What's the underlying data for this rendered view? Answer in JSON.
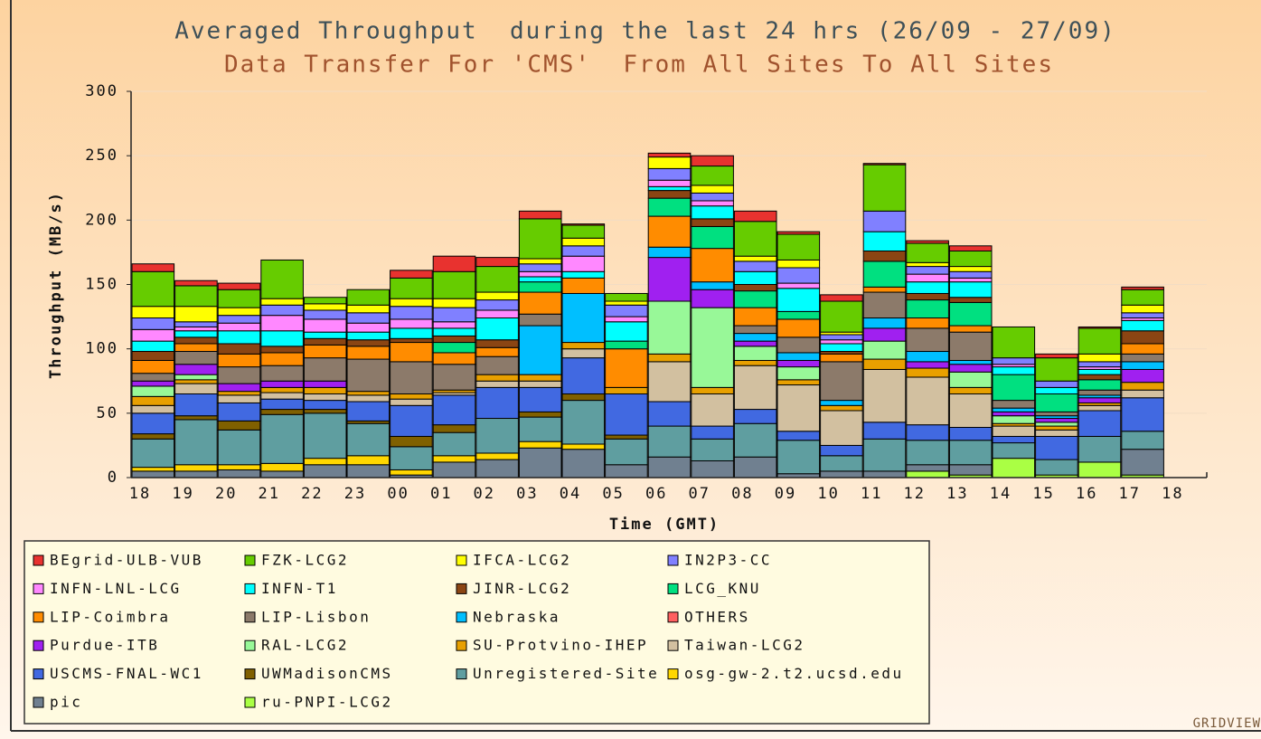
{
  "chart_data": {
    "type": "stacked_bar",
    "title": "Averaged Throughput  during the last 24 hrs (26/09 - 27/09)",
    "subtitle": "Data Transfer For 'CMS'  From All Sites To All Sites",
    "x_label": "Time (GMT)",
    "y_label": "Throughput (MB/s)",
    "categories": [
      "18",
      "19",
      "20",
      "21",
      "22",
      "23",
      "00",
      "01",
      "02",
      "03",
      "04",
      "05",
      "06",
      "07",
      "08",
      "09",
      "10",
      "11",
      "12",
      "13",
      "14",
      "15",
      "16",
      "17",
      "18"
    ],
    "ylim": [
      0,
      300
    ],
    "yticks": [
      0,
      50,
      100,
      150,
      200,
      250,
      300
    ],
    "grid": true,
    "series": [
      {
        "name": "BEgrid-ULB-VUB",
        "color": "#e8322f",
        "values": [
          6,
          4,
          5,
          0,
          0,
          0,
          6,
          12,
          7,
          6,
          1,
          0,
          3,
          8,
          8,
          2,
          5,
          1,
          2,
          4,
          0,
          3,
          1,
          2,
          null
        ]
      },
      {
        "name": "FZK-LCG2",
        "color": "#66cc00",
        "values": [
          27,
          16,
          14,
          30,
          5,
          12,
          16,
          21,
          20,
          31,
          10,
          6,
          0,
          15,
          27,
          20,
          24,
          36,
          15,
          12,
          24,
          18,
          20,
          12,
          null
        ]
      },
      {
        "name": "IFCA-LCG2",
        "color": "#ffff00",
        "values": [
          9,
          12,
          6,
          5,
          5,
          6,
          6,
          7,
          6,
          4,
          6,
          3,
          9,
          6,
          4,
          6,
          2,
          0,
          3,
          4,
          0,
          0,
          6,
          6,
          null
        ]
      },
      {
        "name": "IN2P3-CC",
        "color": "#8080ff",
        "values": [
          9,
          4,
          6,
          8,
          7,
          8,
          10,
          11,
          8,
          6,
          8,
          9,
          9,
          6,
          8,
          12,
          4,
          16,
          6,
          5,
          5,
          5,
          4,
          4,
          null
        ]
      },
      {
        "name": "INFN-LNL-LCG",
        "color": "#ff88ff",
        "values": [
          9,
          3,
          6,
          12,
          10,
          7,
          7,
          5,
          6,
          4,
          12,
          4,
          5,
          4,
          0,
          4,
          3,
          0,
          6,
          3,
          2,
          0,
          2,
          2,
          null
        ]
      },
      {
        "name": "INFN-T1",
        "color": "#00ffff",
        "values": [
          8,
          5,
          10,
          12,
          5,
          6,
          8,
          6,
          17,
          4,
          5,
          15,
          3,
          10,
          10,
          18,
          6,
          15,
          9,
          12,
          6,
          5,
          4,
          8,
          null
        ]
      },
      {
        "name": "JINR-LCG2",
        "color": "#8b4513",
        "values": [
          7,
          5,
          8,
          5,
          5,
          5,
          3,
          5,
          6,
          0,
          0,
          0,
          6,
          6,
          5,
          0,
          2,
          8,
          5,
          4,
          0,
          0,
          4,
          10,
          null
        ]
      },
      {
        "name": "LCG_KNU",
        "color": "#00e080",
        "values": [
          0,
          0,
          0,
          0,
          0,
          0,
          0,
          8,
          0,
          8,
          0,
          6,
          14,
          17,
          13,
          6,
          0,
          20,
          14,
          18,
          20,
          14,
          8,
          0,
          null
        ]
      },
      {
        "name": "LIP-Coimbra",
        "color": "#ff8c00",
        "values": [
          10,
          6,
          10,
          10,
          10,
          10,
          15,
          9,
          7,
          17,
          12,
          30,
          24,
          26,
          14,
          14,
          6,
          4,
          8,
          5,
          0,
          0,
          0,
          8,
          null
        ]
      },
      {
        "name": "LIP-Lisbon",
        "color": "#8c7a6a",
        "values": [
          6,
          10,
          13,
          12,
          18,
          25,
          25,
          20,
          14,
          9,
          0,
          0,
          0,
          0,
          6,
          12,
          30,
          20,
          18,
          22,
          6,
          3,
          4,
          6,
          null
        ]
      },
      {
        "name": "Nebraska",
        "color": "#00bfff",
        "values": [
          0,
          0,
          0,
          0,
          0,
          0,
          0,
          0,
          0,
          38,
          38,
          0,
          8,
          6,
          6,
          6,
          4,
          8,
          8,
          3,
          3,
          2,
          2,
          6,
          null
        ]
      },
      {
        "name": "OTHERS",
        "color": "#ff6060",
        "values": [
          0,
          0,
          0,
          0,
          0,
          0,
          0,
          0,
          0,
          0,
          0,
          0,
          0,
          0,
          0,
          0,
          0,
          0,
          0,
          0,
          0,
          0,
          0,
          0,
          null
        ]
      },
      {
        "name": "Purdue-ITB",
        "color": "#a020f0",
        "values": [
          4,
          8,
          6,
          5,
          5,
          0,
          0,
          0,
          0,
          0,
          0,
          0,
          34,
          14,
          4,
          5,
          0,
          10,
          5,
          6,
          3,
          3,
          4,
          10,
          null
        ]
      },
      {
        "name": "RAL-LCG2",
        "color": "#98f898",
        "values": [
          8,
          4,
          0,
          0,
          0,
          0,
          0,
          0,
          0,
          0,
          0,
          0,
          41,
          62,
          11,
          10,
          0,
          14,
          0,
          12,
          6,
          3,
          0,
          0,
          null
        ]
      },
      {
        "name": "SU-Protvino-IHEP",
        "color": "#e8a000",
        "values": [
          7,
          3,
          3,
          4,
          5,
          3,
          4,
          2,
          5,
          5,
          5,
          5,
          6,
          5,
          4,
          4,
          4,
          8,
          7,
          5,
          2,
          3,
          2,
          6,
          null
        ]
      },
      {
        "name": "Taiwan-LCG2",
        "color": "#d2c0a0",
        "values": [
          6,
          8,
          6,
          5,
          5,
          5,
          5,
          2,
          5,
          5,
          7,
          0,
          31,
          25,
          34,
          36,
          27,
          41,
          37,
          26,
          8,
          5,
          4,
          6,
          null
        ]
      },
      {
        "name": "USCMS-FNAL-WC1",
        "color": "#4169e1",
        "values": [
          16,
          17,
          14,
          8,
          7,
          15,
          24,
          23,
          24,
          19,
          28,
          32,
          19,
          10,
          11,
          7,
          8,
          13,
          12,
          10,
          5,
          18,
          20,
          26,
          null
        ]
      },
      {
        "name": "UWMadisonCMS",
        "color": "#806000",
        "values": [
          4,
          3,
          7,
          4,
          3,
          2,
          8,
          6,
          0,
          4,
          5,
          3,
          0,
          0,
          0,
          0,
          0,
          0,
          0,
          0,
          0,
          0,
          0,
          0,
          null
        ]
      },
      {
        "name": "Unregistered-Site",
        "color": "#5f9ea0",
        "values": [
          22,
          35,
          27,
          38,
          35,
          25,
          18,
          18,
          27,
          19,
          34,
          20,
          24,
          17,
          26,
          26,
          12,
          25,
          19,
          19,
          12,
          12,
          20,
          14,
          null
        ]
      },
      {
        "name": "osg-gw-2.t2.ucsd.edu",
        "color": "#ffd700",
        "values": [
          3,
          5,
          4,
          6,
          5,
          7,
          4,
          5,
          5,
          5,
          4,
          0,
          0,
          0,
          0,
          0,
          0,
          0,
          0,
          0,
          0,
          0,
          0,
          0,
          null
        ]
      },
      {
        "name": "pic",
        "color": "#708090",
        "values": [
          5,
          5,
          6,
          5,
          10,
          10,
          2,
          12,
          14,
          23,
          22,
          10,
          16,
          13,
          16,
          3,
          5,
          5,
          5,
          8,
          0,
          0,
          0,
          20,
          null
        ]
      },
      {
        "name": "ru-PNPI-LCG2",
        "color": "#aaff44",
        "values": [
          0,
          0,
          0,
          0,
          0,
          0,
          0,
          0,
          0,
          0,
          0,
          0,
          0,
          0,
          0,
          0,
          0,
          0,
          5,
          2,
          15,
          2,
          12,
          2,
          null
        ]
      }
    ]
  },
  "footer": "GRIDVIEW"
}
